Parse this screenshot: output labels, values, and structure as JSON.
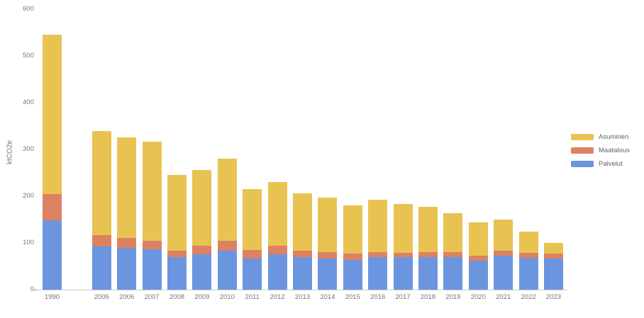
{
  "chart": {
    "title": "",
    "y_axis_title": "ktCO2e"
  },
  "chart_data": {
    "type": "bar",
    "stacked": true,
    "title": "",
    "xlabel": "",
    "ylabel": "ktCO2e",
    "ylim": [
      0,
      600
    ],
    "yticks": [
      0,
      100,
      200,
      300,
      400,
      500,
      600
    ],
    "grid": false,
    "legend_position": "right",
    "legend_order": [
      "Asuminen",
      "Maatalous",
      "Palvelut"
    ],
    "categories": [
      "1990",
      "2005",
      "2006",
      "2007",
      "2008",
      "2009",
      "2010",
      "2011",
      "2012",
      "2013",
      "2014",
      "2015",
      "2016",
      "2017",
      "2018",
      "2019",
      "2020",
      "2021",
      "2022",
      "2023"
    ],
    "series": [
      {
        "name": "Palvelut",
        "color": "#6C95E0",
        "values": [
          148,
          93,
          89,
          86,
          69,
          76,
          83,
          67,
          76,
          69,
          67,
          64,
          70,
          69,
          70,
          69,
          62,
          73,
          68,
          66
        ]
      },
      {
        "name": "Maatalous",
        "color": "#DD8163",
        "values": [
          56,
          24,
          21,
          19,
          15,
          18,
          21,
          18,
          18,
          14,
          14,
          13,
          11,
          10,
          10,
          11,
          10,
          11,
          11,
          11
        ]
      },
      {
        "name": "Asuminen",
        "color": "#E9C351",
        "values": [
          341,
          223,
          216,
          211,
          161,
          162,
          176,
          130,
          137,
          123,
          116,
          104,
          111,
          104,
          98,
          83,
          72,
          66,
          45,
          23
        ]
      }
    ]
  }
}
